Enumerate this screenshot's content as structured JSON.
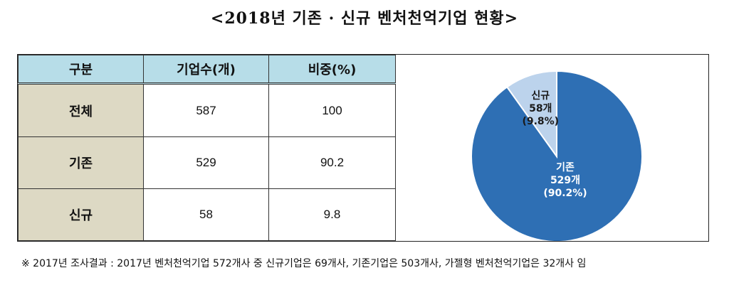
{
  "title": "<2018년 기존 · 신규 벤처천억기업 현황>",
  "table": {
    "headers": [
      "구분",
      "기업수(개)",
      "비중(%)"
    ],
    "rows": [
      {
        "label": "전체",
        "count": "587",
        "share": "100"
      },
      {
        "label": "기존",
        "count": "529",
        "share": "90.2"
      },
      {
        "label": "신규",
        "count": "58",
        "share": "9.8"
      }
    ]
  },
  "chart_data": {
    "type": "pie",
    "title": "",
    "slices": [
      {
        "label": "기존",
        "count_label": "529개",
        "percent_label": "(90.2%)",
        "value": 529,
        "percent": 90.2,
        "color": "#2e6fb4"
      },
      {
        "label": "신규",
        "count_label": "58개",
        "percent_label": "(9.8%)",
        "value": 58,
        "percent": 9.8,
        "color": "#bcd3ec"
      }
    ]
  },
  "footnote": "※ 2017년 조사결과 : 2017년 벤처천억기업 572개사 중 신규기업은 69개사, 기존기업은 503개사, 가젤형 벤처천억기업은 32개사 임"
}
